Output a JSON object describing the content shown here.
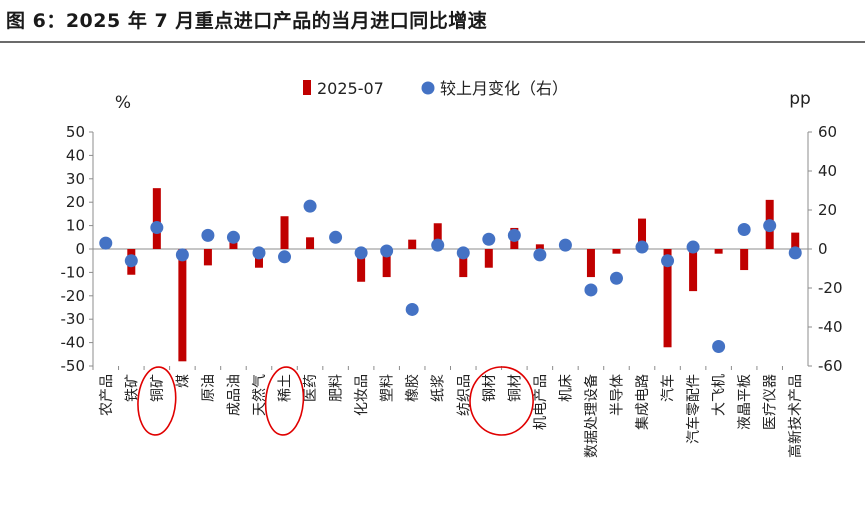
{
  "title": "图 6：2025 年 7 月重点进口产品的当月进口同比增速",
  "chart_data": {
    "type": "bar",
    "left_unit": "%",
    "right_unit": "pp",
    "ylim_left": [
      -50,
      50
    ],
    "yticks_left": [
      50,
      40,
      30,
      20,
      10,
      0,
      -10,
      -20,
      -30,
      -40,
      -50
    ],
    "ylim_right": [
      -60,
      60
    ],
    "yticks_right": [
      60,
      40,
      20,
      0,
      -20,
      -40,
      -60
    ],
    "legend_position": "top-center",
    "categories": [
      "农产品",
      "铁矿",
      "铜矿",
      "煤",
      "原油",
      "成品油",
      "天然气",
      "稀土",
      "医药",
      "肥料",
      "化妆品",
      "塑料",
      "橡胶",
      "纸浆",
      "纺织品",
      "钢材",
      "铜材",
      "机电产品",
      "机床",
      "数据处理设备",
      "半导体",
      "集成电路",
      "汽车",
      "汽车零配件",
      "大飞机",
      "液晶平板",
      "医疗仪器",
      "高新技术产品"
    ],
    "series": [
      {
        "name": "2025-07",
        "type": "bar",
        "axis": "left",
        "color": "#c00000",
        "values": [
          0,
          -11,
          26,
          -48,
          -7,
          3,
          -8,
          14,
          5,
          0,
          -14,
          -12,
          4,
          11,
          -12,
          -8,
          9,
          2,
          2,
          -12,
          -2,
          13,
          -42,
          -18,
          -2,
          -9,
          21,
          7
        ]
      },
      {
        "name": "较上月变化（右）",
        "type": "scatter",
        "axis": "right",
        "color": "#4472c4",
        "values": [
          3,
          -6,
          11,
          -3,
          7,
          6,
          -2,
          -4,
          22,
          6,
          -2,
          -1,
          -31,
          2,
          -2,
          5,
          7,
          -3,
          2,
          -21,
          -15,
          1,
          -6,
          1,
          -50,
          10,
          12,
          -2
        ]
      }
    ],
    "annotation_color": "#e00000",
    "circled_categories": [
      "铜矿",
      "稀土",
      "钢材",
      "铜材"
    ]
  }
}
